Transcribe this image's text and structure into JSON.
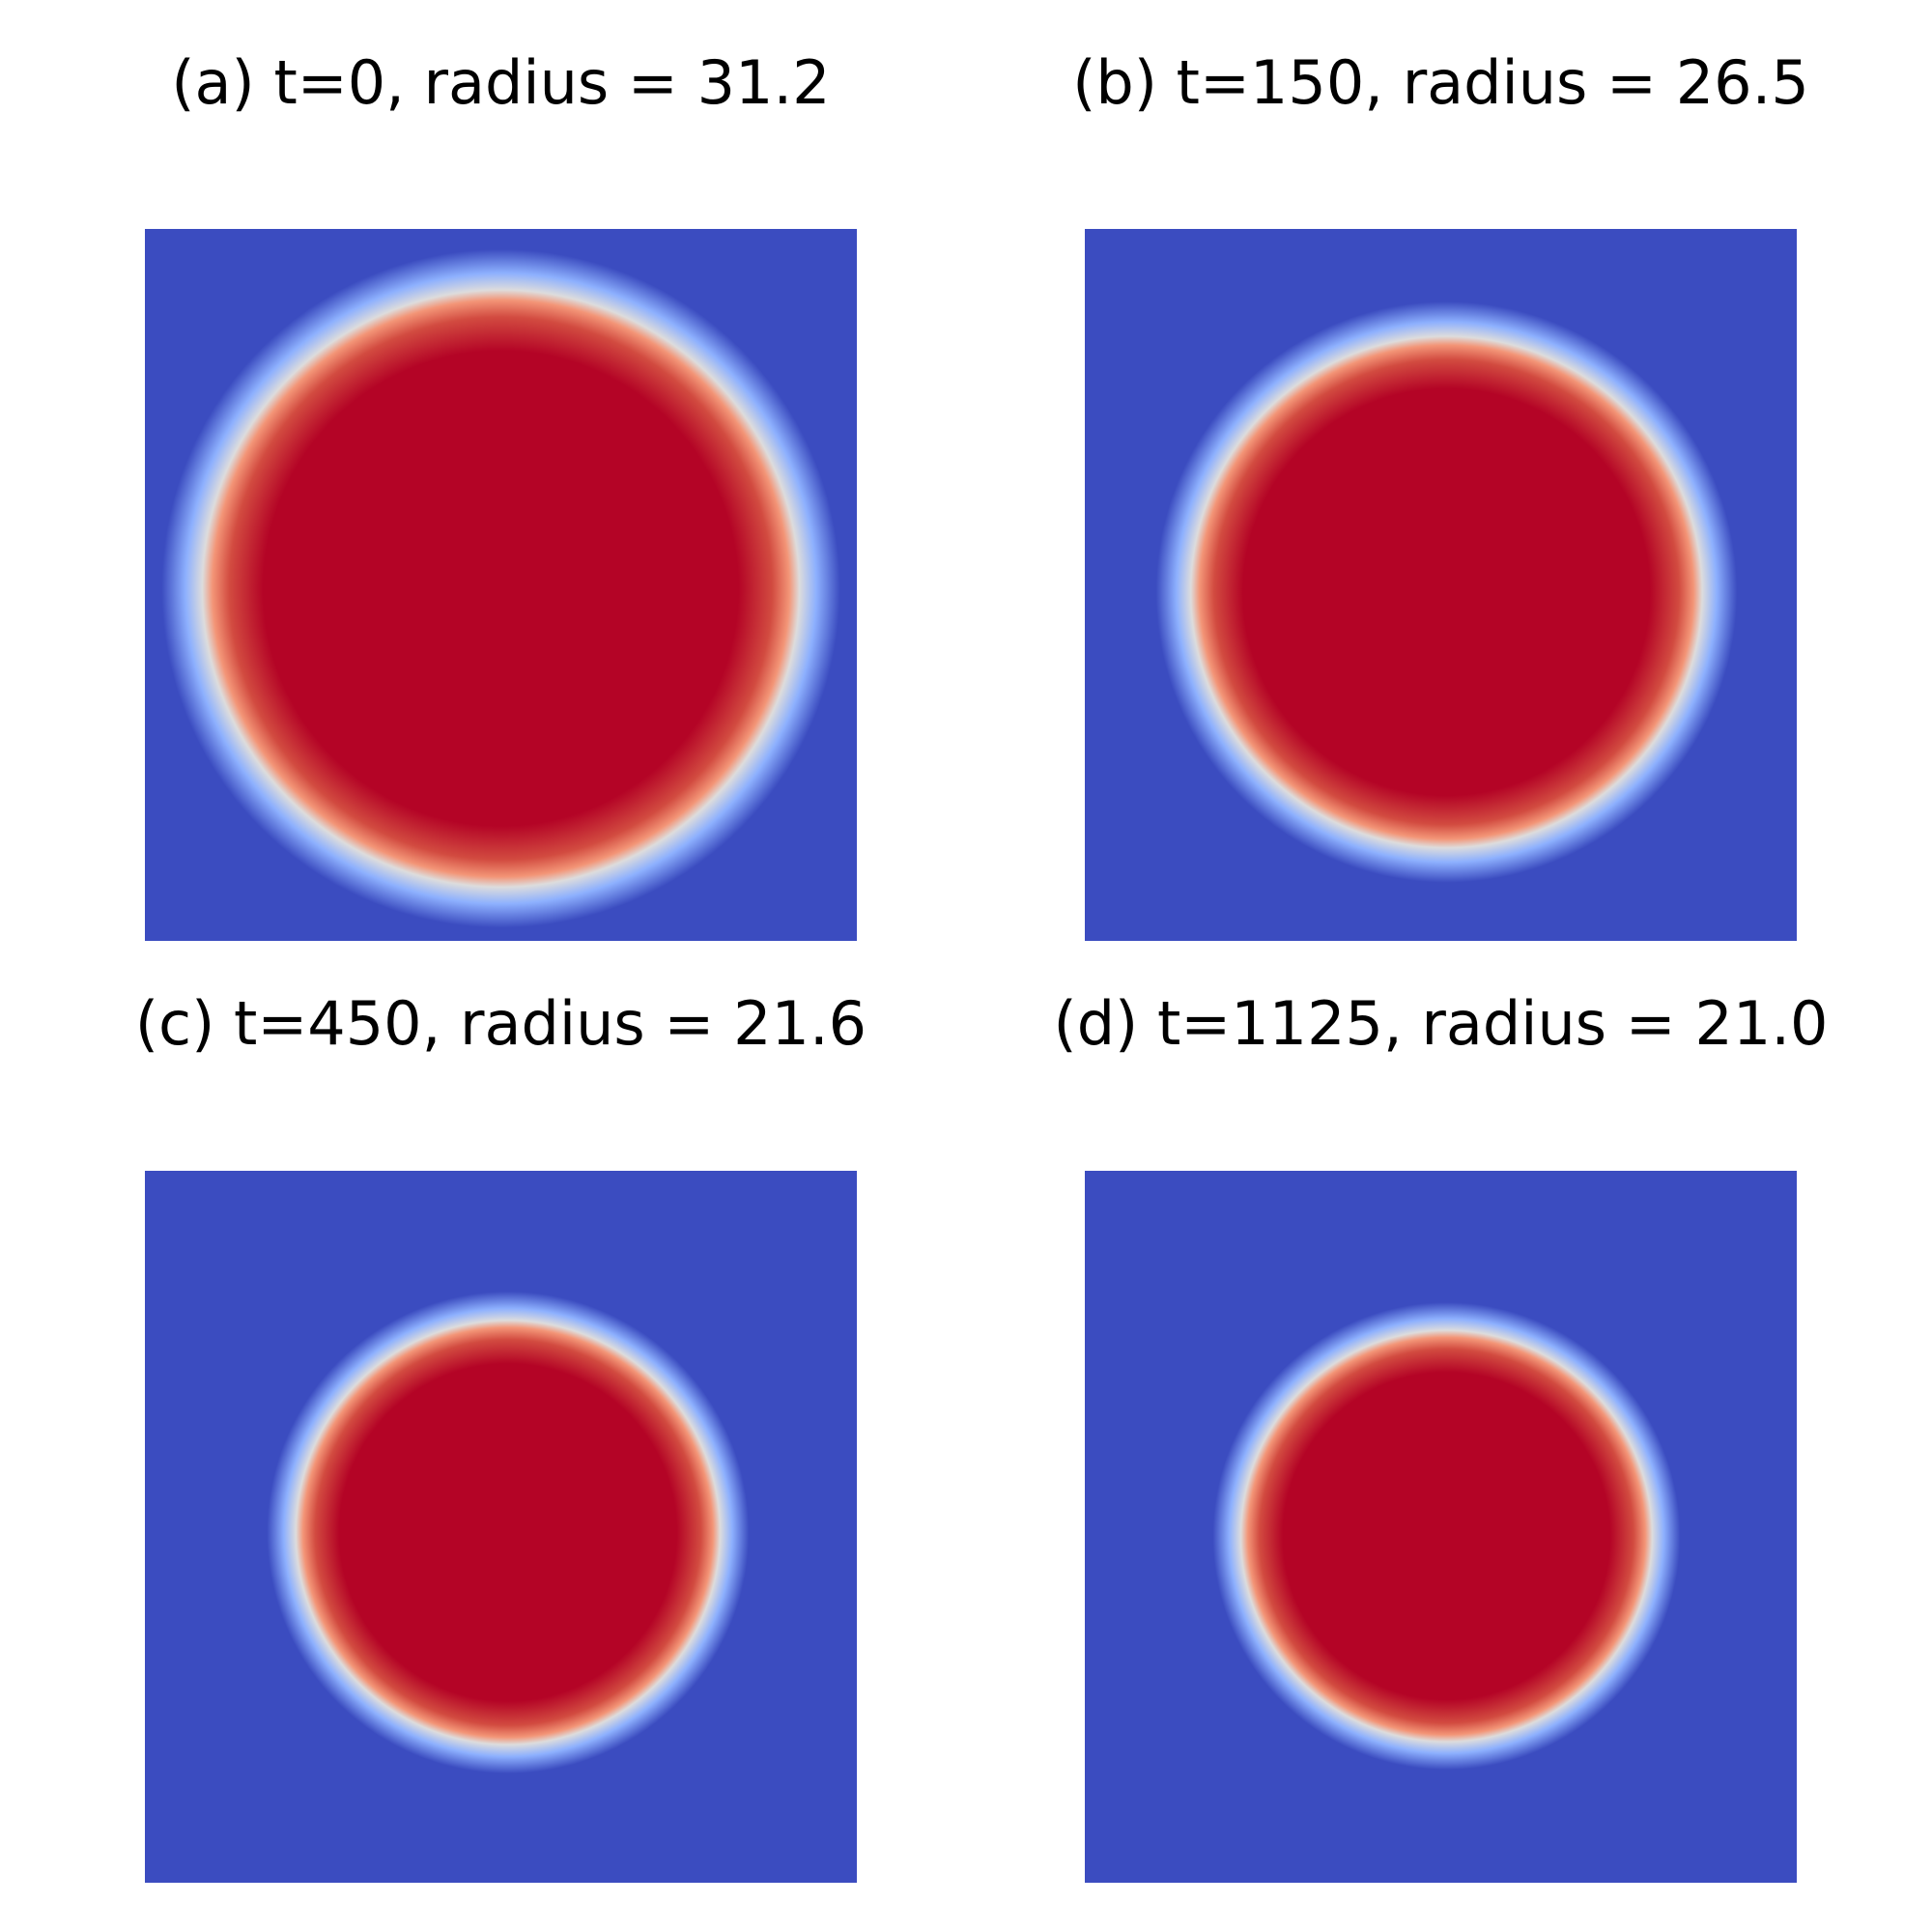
{
  "chart_data": [
    {
      "type": "heatmap",
      "title": "(a) t=0, radius = 31.2"
    },
    {
      "type": "heatmap",
      "title": "(b) t=150, radius = 26.5"
    },
    {
      "type": "heatmap",
      "title": "(c) t=450, radius = 21.6"
    },
    {
      "type": "heatmap",
      "title": "(d) t=1125, radius = 21.0"
    }
  ]
}
